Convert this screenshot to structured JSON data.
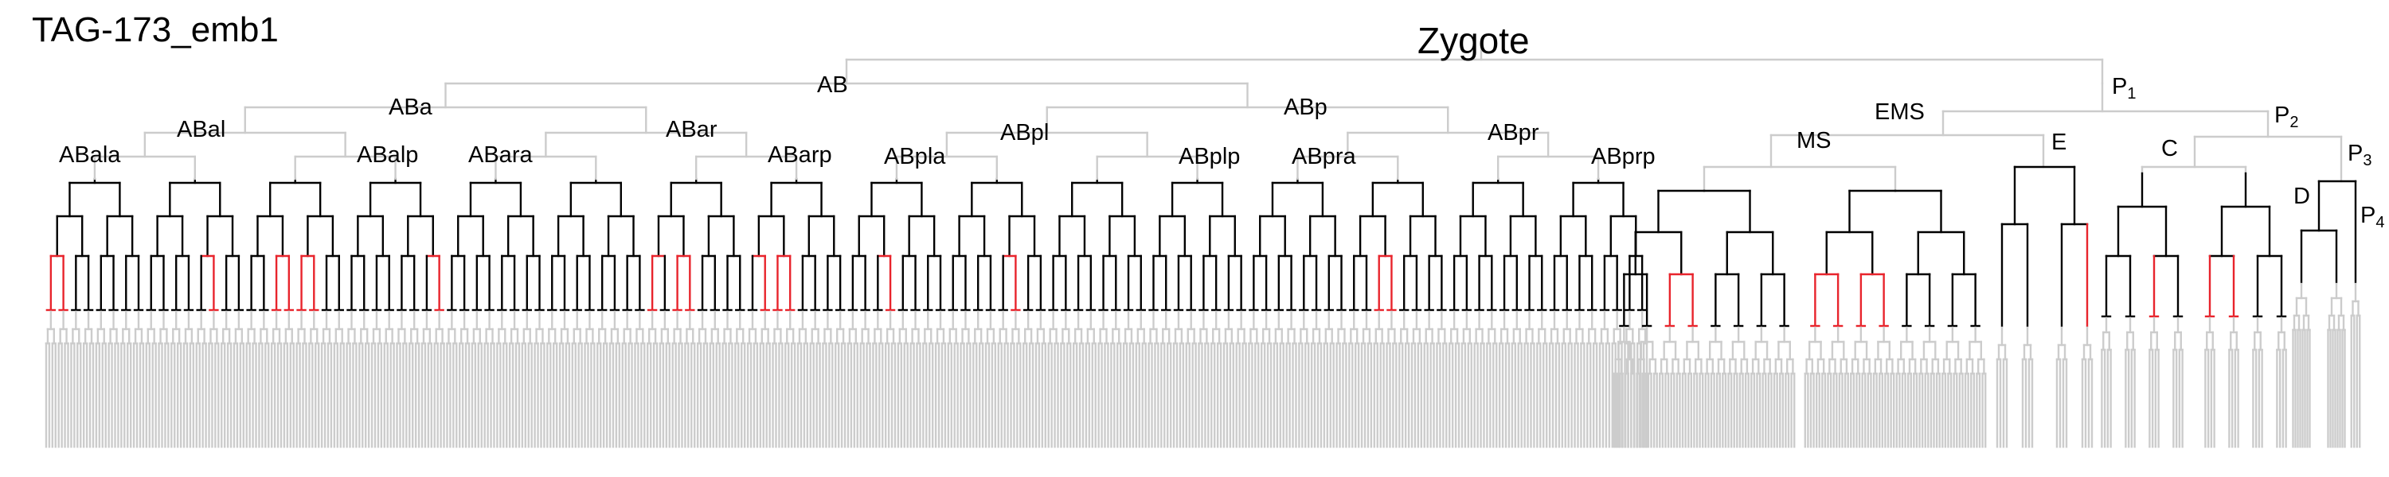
{
  "embryo_title": "TAG-173_emb1",
  "root_label": "Zygote",
  "labels": {
    "AB": "AB",
    "ABa": "ABa",
    "ABp": "ABp",
    "ABal": "ABal",
    "ABar": "ABar",
    "ABpl": "ABpl",
    "ABpr": "ABpr",
    "ABala": "ABala",
    "ABalp": "ABalp",
    "ABara": "ABara",
    "ABarp": "ABarp",
    "ABpla": "ABpla",
    "ABplp": "ABplp",
    "ABpra": "ABpra",
    "ABprp": "ABprp",
    "P1_base": "P",
    "P1_sub": "1",
    "EMS": "EMS",
    "P2_base": "P",
    "P2_sub": "2",
    "MS": "MS",
    "E": "E",
    "C": "C",
    "P3_base": "P",
    "P3_sub": "3",
    "D": "D",
    "P4_base": "P",
    "P4_sub": "4"
  },
  "colors": {
    "line_expressed": "#000000",
    "line_highlight": "#e8242c",
    "line_unscored": "#cccccc"
  }
}
